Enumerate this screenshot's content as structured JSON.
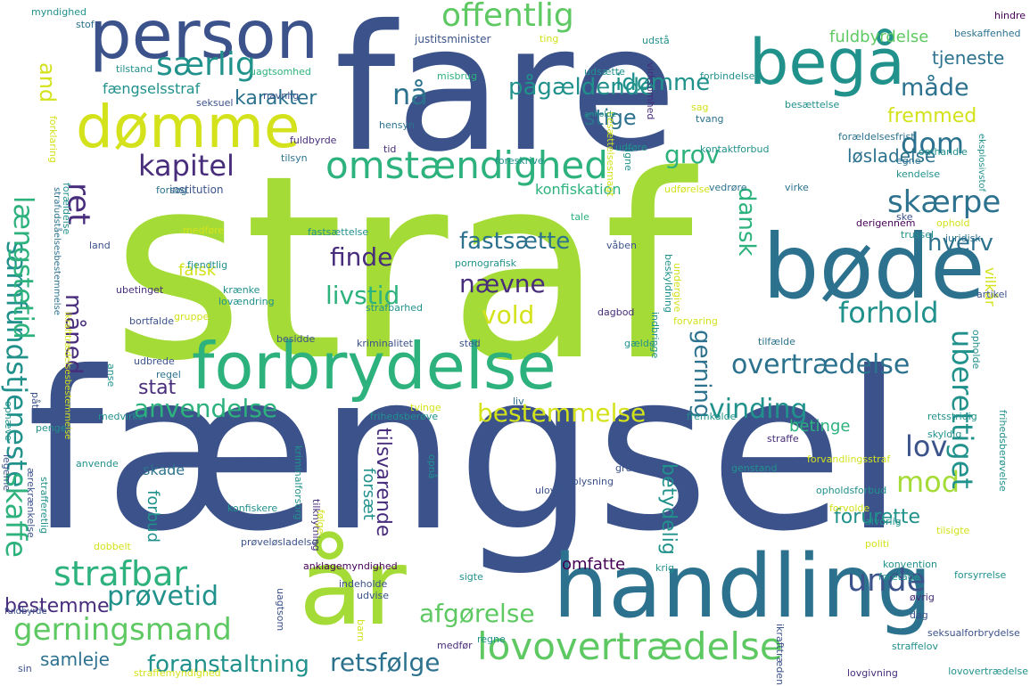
{
  "palette": {
    "yellow": "#d3e21b",
    "lime": "#a5db36",
    "green": "#5ec962",
    "teal-green": "#2db27d",
    "teal": "#21918c",
    "blue-teal": "#2c728e",
    "blue": "#3b528b",
    "indigo": "#472d7b",
    "purple": "#440154",
    "yellow-light": "#f1e51d"
  },
  "words": [
    {
      "text": "straf",
      "color": "lime"
    },
    {
      "text": "fængsel",
      "color": "blue"
    },
    {
      "text": "fare",
      "color": "blue"
    },
    {
      "text": "person",
      "color": "blue"
    },
    {
      "text": "handling",
      "color": "blue-teal"
    },
    {
      "text": "dømme",
      "color": "yellow"
    },
    {
      "text": "begå",
      "color": "teal"
    },
    {
      "text": "bøde",
      "color": "blue-teal"
    },
    {
      "text": "forbrydelse",
      "color": "teal-green"
    },
    {
      "text": "år",
      "color": "lime"
    },
    {
      "text": "omstændighed",
      "color": "teal-green"
    },
    {
      "text": "gerningsmand",
      "color": "green"
    },
    {
      "text": "lovovertrædelse",
      "color": "green"
    },
    {
      "text": "samfundstjeneste",
      "color": "teal"
    },
    {
      "text": "længstetid",
      "color": "teal-green"
    },
    {
      "text": "kapitel",
      "color": "indigo"
    },
    {
      "text": "særlig",
      "color": "teal"
    },
    {
      "text": "offentlig",
      "color": "green"
    },
    {
      "text": "pågældende",
      "color": "teal"
    },
    {
      "text": "idømme",
      "color": "teal"
    },
    {
      "text": "måde",
      "color": "blue-teal"
    },
    {
      "text": "dom",
      "color": "blue-teal"
    },
    {
      "text": "skærpe",
      "color": "blue-teal"
    },
    {
      "text": "forhold",
      "color": "teal"
    },
    {
      "text": "overtrædelse",
      "color": "blue-teal"
    },
    {
      "text": "vinding",
      "color": "teal"
    },
    {
      "text": "bestemmelse",
      "color": "yellow"
    },
    {
      "text": "anvendelse",
      "color": "teal-green"
    },
    {
      "text": "strafbar",
      "color": "teal-green"
    },
    {
      "text": "prøvetid",
      "color": "teal"
    },
    {
      "text": "afgørelse",
      "color": "green"
    },
    {
      "text": "retsfølge",
      "color": "blue-teal"
    },
    {
      "text": "foranstaltning",
      "color": "teal"
    },
    {
      "text": "samleje",
      "color": "blue-teal"
    },
    {
      "text": "bestemme",
      "color": "indigo"
    },
    {
      "text": "unde",
      "color": "blue"
    },
    {
      "text": "mod",
      "color": "lime"
    },
    {
      "text": "lov",
      "color": "blue"
    },
    {
      "text": "finde",
      "color": "indigo"
    },
    {
      "text": "nævne",
      "color": "indigo"
    },
    {
      "text": "fastsætte",
      "color": "blue-teal"
    },
    {
      "text": "livstid",
      "color": "teal-green"
    },
    {
      "text": "vold",
      "color": "yellow"
    },
    {
      "text": "karakter",
      "color": "blue-teal"
    },
    {
      "text": "nå",
      "color": "blue-teal"
    },
    {
      "text": "stige",
      "color": "blue-teal"
    },
    {
      "text": "grov",
      "color": "teal-green"
    },
    {
      "text": "dansk",
      "color": "teal-green"
    },
    {
      "text": "hverv",
      "color": "blue-teal"
    },
    {
      "text": "ret",
      "color": "indigo"
    },
    {
      "text": "and",
      "color": "yellow"
    },
    {
      "text": "måned",
      "color": "indigo"
    },
    {
      "text": "skaffe",
      "color": "teal-green"
    },
    {
      "text": "gerning",
      "color": "blue-teal"
    },
    {
      "text": "uberettiget",
      "color": "teal"
    },
    {
      "text": "stat",
      "color": "indigo"
    },
    {
      "text": "løsladelse",
      "color": "blue-teal"
    },
    {
      "text": "fremmed",
      "color": "yellow"
    },
    {
      "text": "tjeneste",
      "color": "blue-teal"
    },
    {
      "text": "fuldbyrdelse",
      "color": "green"
    },
    {
      "text": "fængselsstraf",
      "color": "teal"
    },
    {
      "text": "tilsvarende",
      "color": "indigo"
    },
    {
      "text": "betydelig",
      "color": "teal"
    },
    {
      "text": "forurette",
      "color": "teal"
    },
    {
      "text": "forsæt",
      "color": "teal"
    },
    {
      "text": "omfatte",
      "color": "purple"
    },
    {
      "text": "konfiskation",
      "color": "teal-green"
    },
    {
      "text": "falsk",
      "color": "yellow"
    },
    {
      "text": "forbud",
      "color": "teal"
    },
    {
      "text": "vilkår",
      "color": "yellow"
    },
    {
      "text": "skade",
      "color": "blue-teal"
    },
    {
      "text": "betinge",
      "color": "teal-green"
    },
    {
      "text": "institution",
      "color": "blue"
    },
    {
      "text": "justitsminister",
      "color": "blue"
    },
    {
      "text": "myndighed",
      "color": "teal"
    },
    {
      "text": "stof",
      "color": "blue-teal"
    },
    {
      "text": "tilstand",
      "color": "teal"
    },
    {
      "text": "uagtsomhed",
      "color": "teal-green"
    },
    {
      "text": "misbrug",
      "color": "teal-green"
    },
    {
      "text": "ting",
      "color": "yellow"
    },
    {
      "text": "udstå",
      "color": "teal"
    },
    {
      "text": "hindre",
      "color": "purple"
    },
    {
      "text": "beskaffenhed",
      "color": "blue-teal"
    },
    {
      "text": "udsætte",
      "color": "teal"
    },
    {
      "text": "forbindelse",
      "color": "teal"
    },
    {
      "text": "seksuel",
      "color": "blue"
    },
    {
      "text": "navnlig",
      "color": "blue"
    },
    {
      "text": "hensyn",
      "color": "blue-teal"
    },
    {
      "text": "virksomhed",
      "color": "indigo"
    },
    {
      "text": "besættelsesmagt",
      "color": "yellow"
    },
    {
      "text": "anholde",
      "color": "teal"
    },
    {
      "text": "sag",
      "color": "yellow"
    },
    {
      "text": "tvang",
      "color": "blue-teal"
    },
    {
      "text": "besættelse",
      "color": "teal"
    },
    {
      "text": "omhandle",
      "color": "teal"
    },
    {
      "text": "forældelsesfrist",
      "color": "blue-teal"
    },
    {
      "text": "eksplosivstof",
      "color": "teal"
    },
    {
      "text": "fuldbyrde",
      "color": "indigo"
    },
    {
      "text": "tid",
      "color": "indigo"
    },
    {
      "text": "udføre",
      "color": "teal"
    },
    {
      "text": "ligne",
      "color": "teal"
    },
    {
      "text": "kontaktforbud",
      "color": "teal"
    },
    {
      "text": "tilsyn",
      "color": "blue-teal"
    },
    {
      "text": "forsøg",
      "color": "blue-teal"
    },
    {
      "text": "foreskrive",
      "color": "teal"
    },
    {
      "text": "vedrøre",
      "color": "blue-teal"
    },
    {
      "text": "udførelse",
      "color": "yellow"
    },
    {
      "text": "virke",
      "color": "blue-teal"
    },
    {
      "text": "egne",
      "color": "blue-teal"
    },
    {
      "text": "kendelse",
      "color": "teal"
    },
    {
      "text": "forklaring",
      "color": "yellow"
    },
    {
      "text": "forældelse",
      "color": "teal"
    },
    {
      "text": "strafudståelsesbestemmelse",
      "color": "blue-teal"
    },
    {
      "text": "tale",
      "color": "teal-green"
    },
    {
      "text": "ske",
      "color": "blue"
    },
    {
      "text": "ophold",
      "color": "yellow"
    },
    {
      "text": "juridisk",
      "color": "blue-teal"
    },
    {
      "text": "trussel",
      "color": "teal"
    },
    {
      "text": "derigennem",
      "color": "purple"
    },
    {
      "text": "land",
      "color": "blue"
    },
    {
      "text": "medføre",
      "color": "yellow"
    },
    {
      "text": "fastsættelse",
      "color": "teal"
    },
    {
      "text": "våben",
      "color": "blue"
    },
    {
      "text": "pornografisk",
      "color": "teal"
    },
    {
      "text": "fjendtlig",
      "color": "teal"
    },
    {
      "text": "beskyldning",
      "color": "teal"
    },
    {
      "text": "undergive",
      "color": "yellow"
    },
    {
      "text": "ubetinget",
      "color": "indigo"
    },
    {
      "text": "krænke",
      "color": "teal"
    },
    {
      "text": "lovændring",
      "color": "teal"
    },
    {
      "text": "dagbod",
      "color": "indigo"
    },
    {
      "text": "gruppe",
      "color": "yellow"
    },
    {
      "text": "strafbarhed",
      "color": "teal"
    },
    {
      "text": "forvaring",
      "color": "yellow"
    },
    {
      "text": "artikel",
      "color": "blue"
    },
    {
      "text": "opholde",
      "color": "teal"
    },
    {
      "text": "ikrafttrædelsesbestemmelse",
      "color": "yellow"
    },
    {
      "text": "bortfalde",
      "color": "blue"
    },
    {
      "text": "besidde",
      "color": "blue"
    },
    {
      "text": "kriminalitet",
      "color": "blue"
    },
    {
      "text": "sted",
      "color": "blue"
    },
    {
      "text": "indbringe",
      "color": "teal"
    },
    {
      "text": "gælde",
      "color": "teal"
    },
    {
      "text": "tilfælde",
      "color": "blue-teal"
    },
    {
      "text": "udbrede",
      "color": "blue"
    },
    {
      "text": "anse",
      "color": "teal"
    },
    {
      "text": "regel",
      "color": "blue-teal"
    },
    {
      "text": "påtale",
      "color": "blue"
    },
    {
      "text": "tvinge",
      "color": "yellow"
    },
    {
      "text": "liv",
      "color": "blue-teal"
    },
    {
      "text": "penge",
      "color": "teal"
    },
    {
      "text": "medvirke",
      "color": "teal"
    },
    {
      "text": "frihedsberøve",
      "color": "teal"
    },
    {
      "text": "fremkalde",
      "color": "teal"
    },
    {
      "text": "retsstridig",
      "color": "teal"
    },
    {
      "text": "ophæve",
      "color": "teal"
    },
    {
      "text": "skyldig",
      "color": "teal"
    },
    {
      "text": "straffe",
      "color": "indigo"
    },
    {
      "text": "undlade",
      "color": "blue"
    },
    {
      "text": "grund",
      "color": "blue"
    },
    {
      "text": "genstand",
      "color": "teal"
    },
    {
      "text": "forvandlingsstraf",
      "color": "yellow"
    },
    {
      "text": "frihedsberøvelse",
      "color": "teal"
    },
    {
      "text": "legeme",
      "color": "blue"
    },
    {
      "text": "kriminalforsorg",
      "color": "teal"
    },
    {
      "text": "opnå",
      "color": "teal"
    },
    {
      "text": "anvende",
      "color": "teal"
    },
    {
      "text": "ærekrænkelse",
      "color": "blue"
    },
    {
      "text": "strafferetlig",
      "color": "teal"
    },
    {
      "text": "tilknytning",
      "color": "indigo"
    },
    {
      "text": "følge",
      "color": "yellow"
    },
    {
      "text": "oplysning",
      "color": "blue"
    },
    {
      "text": "opholdsforbud",
      "color": "teal"
    },
    {
      "text": "forvolde",
      "color": "yellow"
    },
    {
      "text": "ulovlig",
      "color": "blue"
    },
    {
      "text": "tilsigte",
      "color": "yellow"
    },
    {
      "text": "konfiskere",
      "color": "teal"
    },
    {
      "text": "alvorlig",
      "color": "teal"
    },
    {
      "text": "dobbelt",
      "color": "yellow"
    },
    {
      "text": "politi",
      "color": "yellow"
    },
    {
      "text": "prøveløsladelse",
      "color": "blue"
    },
    {
      "text": "anklagemyndighed",
      "color": "purple"
    },
    {
      "text": "krig",
      "color": "teal"
    },
    {
      "text": "foretage",
      "color": "teal"
    },
    {
      "text": "konvention",
      "color": "teal"
    },
    {
      "text": "forsyrrelse",
      "color": "teal"
    },
    {
      "text": "uagtsom",
      "color": "blue"
    },
    {
      "text": "indeholde",
      "color": "blue"
    },
    {
      "text": "udvise",
      "color": "blue"
    },
    {
      "text": "sigte",
      "color": "teal"
    },
    {
      "text": "øvrig",
      "color": "indigo"
    },
    {
      "text": "dag",
      "color": "blue"
    },
    {
      "text": "seksualforbrydelse",
      "color": "blue"
    },
    {
      "text": "fuldbyrde",
      "color": "blue"
    },
    {
      "text": "barn",
      "color": "yellow"
    },
    {
      "text": "medfør",
      "color": "indigo"
    },
    {
      "text": "regne",
      "color": "teal"
    },
    {
      "text": "straffelov",
      "color": "teal"
    },
    {
      "text": "ikrafttræden",
      "color": "blue"
    },
    {
      "text": "sin",
      "color": "blue"
    },
    {
      "text": "straffemyndighed",
      "color": "yellow"
    },
    {
      "text": "lovgivning",
      "color": "indigo"
    },
    {
      "text": "lovovertrædelse",
      "color": "teal"
    }
  ]
}
